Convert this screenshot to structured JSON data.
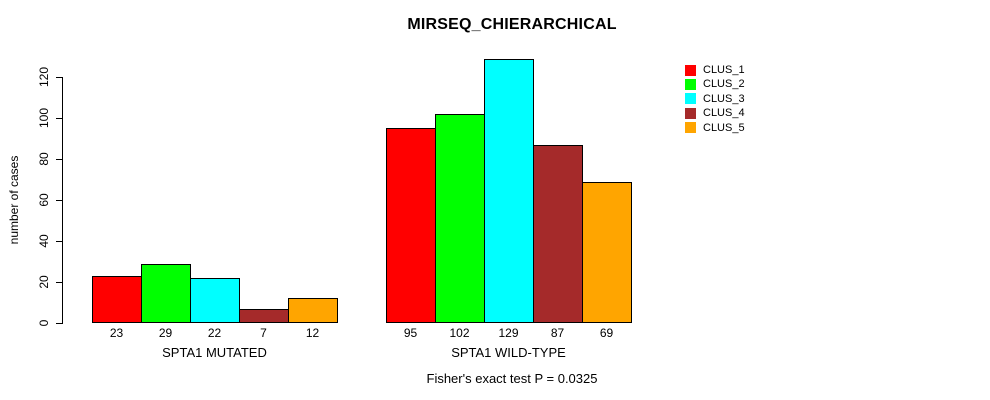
{
  "chart_data": {
    "type": "bar",
    "title": "MIRSEQ_CHIERARCHICAL",
    "ylabel": "number of cases",
    "xlabel": "",
    "yticks": [
      0,
      20,
      40,
      60,
      80,
      100,
      120
    ],
    "ylim": [
      0,
      134
    ],
    "categories": [
      "SPTA1 MUTATED",
      "SPTA1 WILD-TYPE"
    ],
    "series": [
      {
        "name": "CLUS_1",
        "color": "#ff0000",
        "values": [
          23,
          95
        ]
      },
      {
        "name": "CLUS_2",
        "color": "#00ff00",
        "values": [
          29,
          102
        ]
      },
      {
        "name": "CLUS_3",
        "color": "#00ffff",
        "values": [
          22,
          129
        ]
      },
      {
        "name": "CLUS_4",
        "color": "#a52a2a",
        "values": [
          7,
          87
        ]
      },
      {
        "name": "CLUS_5",
        "color": "#ffa500",
        "values": [
          12,
          69
        ]
      }
    ],
    "bar_value_labels": [
      [
        23,
        29,
        22,
        7,
        12
      ],
      [
        95,
        102,
        129,
        87,
        69
      ]
    ],
    "legend_position": "right",
    "grid": false,
    "annotation": "Fisher's exact test P = 0.0325"
  }
}
